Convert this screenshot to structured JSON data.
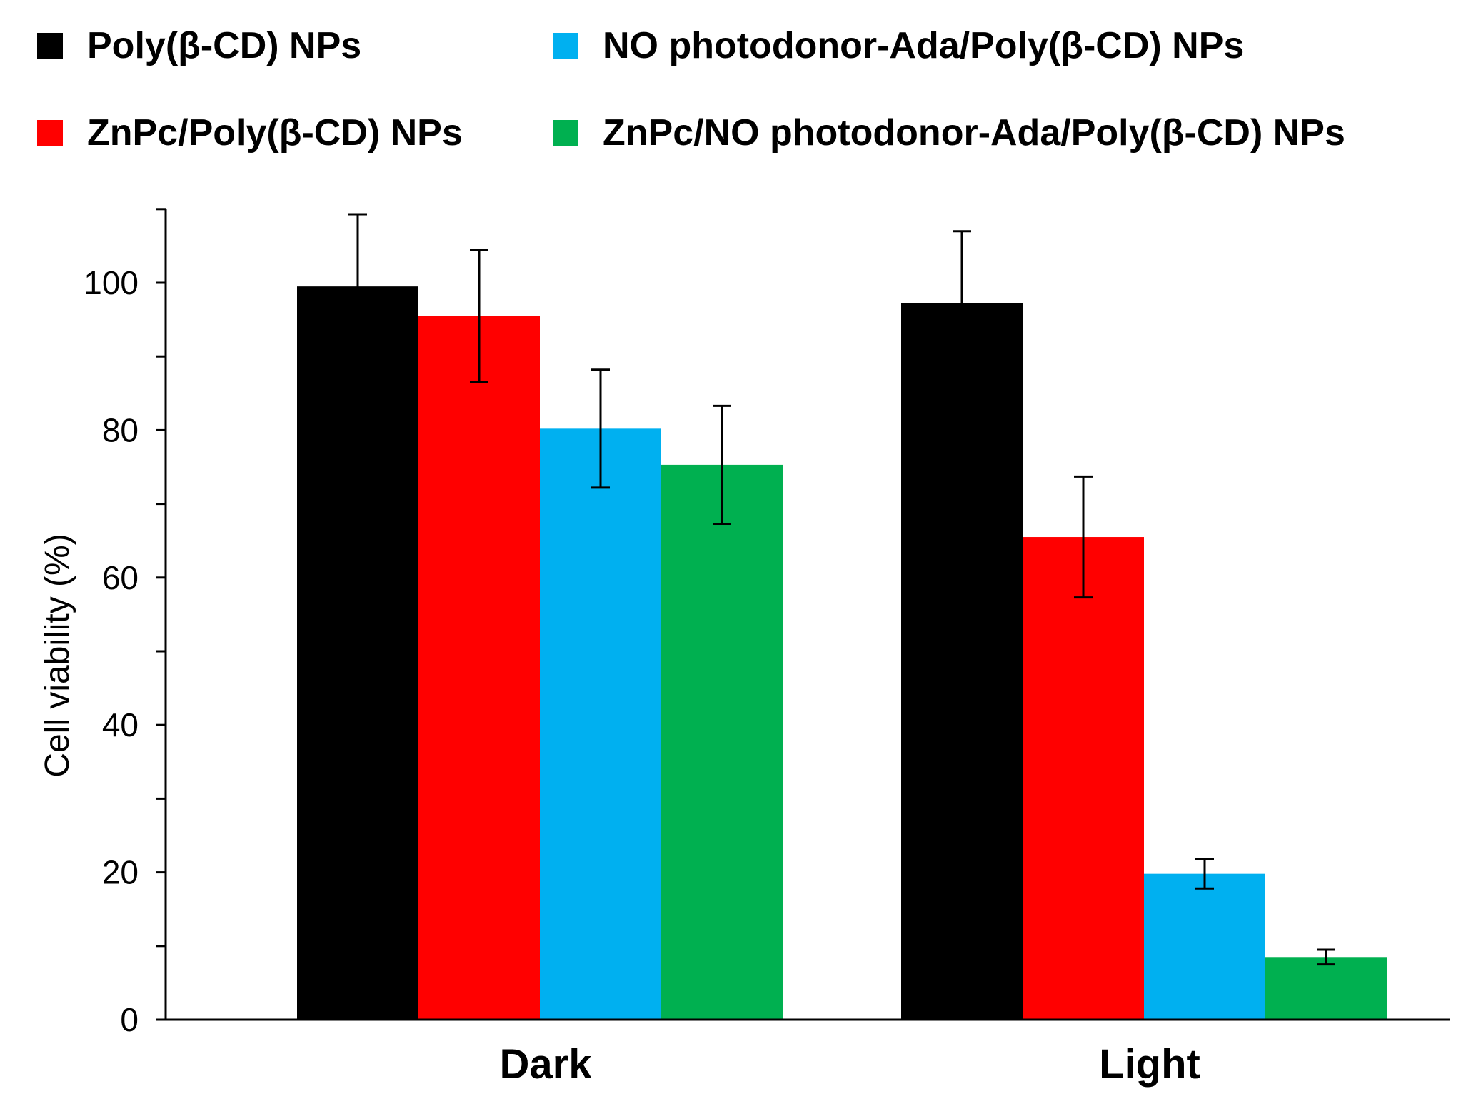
{
  "chart_data": {
    "type": "bar",
    "title": "",
    "xlabel": "",
    "ylabel": "Cell viability (%)",
    "ylim": [
      0,
      110
    ],
    "yticks": [
      0,
      20,
      40,
      60,
      80,
      100
    ],
    "minor_tick_step": 10,
    "grid": false,
    "legend_position": "top",
    "categories": [
      "Dark",
      "Light"
    ],
    "series": [
      {
        "name": "Poly(β-CD) NPs",
        "color": "#000000",
        "values": [
          99.5,
          97.2
        ],
        "errors": [
          9.8,
          9.8
        ]
      },
      {
        "name": "ZnPc/Poly(β-CD) NPs",
        "color": "#ff0000",
        "values": [
          95.5,
          65.5
        ],
        "errors": [
          9.0,
          8.2
        ]
      },
      {
        "name": "NO photodonor-Ada/Poly(β-CD) NPs",
        "color": "#00b0f0",
        "values": [
          80.2,
          19.8
        ],
        "errors": [
          8.0,
          2.0
        ]
      },
      {
        "name": "ZnPc/NO photodonor-Ada/Poly(β-CD) NPs",
        "color": "#00b050",
        "values": [
          75.3,
          8.5
        ],
        "errors": [
          8.0,
          1.0
        ]
      }
    ]
  }
}
